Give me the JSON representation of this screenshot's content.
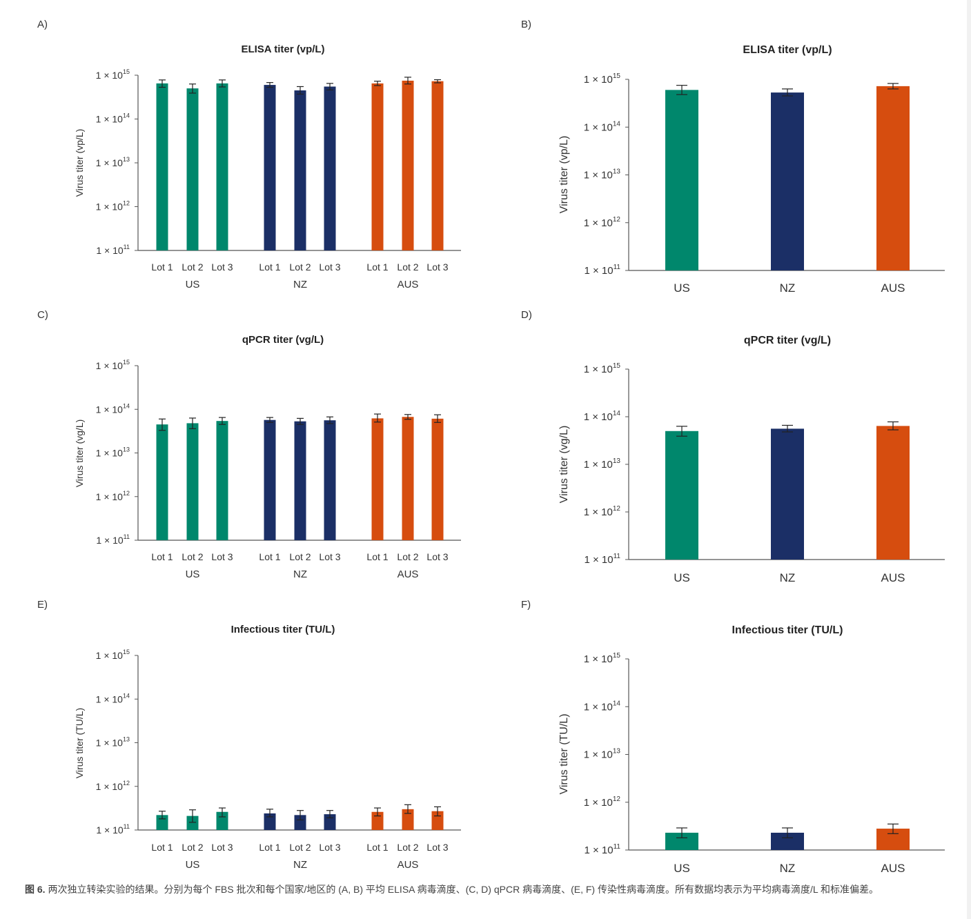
{
  "colors": {
    "US": "#00876c",
    "NZ": "#1b2f66",
    "AUS": "#d64d0f",
    "axis": "#555555",
    "text": "#333333"
  },
  "y_ticks": [
    "1 × 10",
    "1 × 10",
    "1 × 10",
    "1 × 10",
    "1 × 10"
  ],
  "y_tick_exponents": [
    "11",
    "12",
    "13",
    "14",
    "15"
  ],
  "lot_labels": [
    "Lot 1",
    "Lot 2",
    "Lot 3"
  ],
  "countries": [
    "US",
    "NZ",
    "AUS"
  ],
  "chart_data": [
    {
      "panel_label": "A)",
      "type": "bar",
      "grouped": true,
      "title": "ELISA titer (vp/L)",
      "ylabel": "Virus titer (vp/L)",
      "yscale": "log10",
      "ylim": [
        100000000000.0,
        1000000000000000.0
      ],
      "values": [
        [
          650000000000000.0,
          500000000000000.0,
          650000000000000.0
        ],
        [
          600000000000000.0,
          450000000000000.0,
          550000000000000.0
        ],
        [
          650000000000000.0,
          750000000000000.0,
          730000000000000.0
        ]
      ],
      "err_low": [
        [
          530000000000000.0,
          390000000000000.0,
          540000000000000.0
        ],
        [
          530000000000000.0,
          370000000000000.0,
          460000000000000.0
        ],
        [
          580000000000000.0,
          630000000000000.0,
          670000000000000.0
        ]
      ],
      "err_high": [
        [
          780000000000000.0,
          630000000000000.0,
          780000000000000.0
        ],
        [
          680000000000000.0,
          550000000000000.0,
          650000000000000.0
        ],
        [
          730000000000000.0,
          900000000000000.0,
          790000000000000.0
        ]
      ]
    },
    {
      "panel_label": "B)",
      "type": "bar",
      "grouped": false,
      "title": "ELISA titer (vp/L)",
      "ylabel": "Virus titer (vp/L)",
      "yscale": "log10",
      "ylim": [
        100000000000.0,
        1000000000000000.0
      ],
      "values": [
        600000000000000.0,
        530000000000000.0,
        720000000000000.0
      ],
      "err_low": [
        480000000000000.0,
        450000000000000.0,
        630000000000000.0
      ],
      "err_high": [
        750000000000000.0,
        630000000000000.0,
        820000000000000.0
      ]
    },
    {
      "panel_label": "C)",
      "type": "bar",
      "grouped": true,
      "title": "qPCR titer (vg/L)",
      "ylabel": "Virus titer (vg/L)",
      "yscale": "log10",
      "ylim": [
        100000000000.0,
        1000000000000000.0
      ],
      "values": [
        [
          45000000000000.0,
          48000000000000.0,
          54000000000000.0
        ],
        [
          57000000000000.0,
          53000000000000.0,
          56000000000000.0
        ],
        [
          62000000000000.0,
          67000000000000.0,
          61000000000000.0
        ]
      ],
      "err_low": [
        [
          33000000000000.0,
          36000000000000.0,
          45000000000000.0
        ],
        [
          50000000000000.0,
          45000000000000.0,
          47000000000000.0
        ],
        [
          51000000000000.0,
          59000000000000.0,
          50000000000000.0
        ]
      ],
      "err_high": [
        [
          60000000000000.0,
          63000000000000.0,
          65000000000000.0
        ],
        [
          65000000000000.0,
          62000000000000.0,
          67000000000000.0
        ],
        [
          78000000000000.0,
          76000000000000.0,
          75000000000000.0
        ]
      ]
    },
    {
      "panel_label": "D)",
      "type": "bar",
      "grouped": false,
      "title": "qPCR titer (vg/L)",
      "ylabel": "Virus titer (vg/L)",
      "yscale": "log10",
      "ylim": [
        100000000000.0,
        1000000000000000.0
      ],
      "values": [
        50000000000000.0,
        56000000000000.0,
        64000000000000.0
      ],
      "err_low": [
        39000000000000.0,
        48000000000000.0,
        53000000000000.0
      ],
      "err_high": [
        63000000000000.0,
        66000000000000.0,
        78000000000000.0
      ]
    },
    {
      "panel_label": "E)",
      "type": "bar",
      "grouped": true,
      "title": "Infectious titer (TU/L)",
      "ylabel": "Virus titer (TU/L)",
      "yscale": "log10",
      "ylim": [
        100000000000.0,
        1000000000000000.0
      ],
      "values": [
        [
          220000000000.0,
          210000000000.0,
          260000000000.0
        ],
        [
          240000000000.0,
          220000000000.0,
          230000000000.0
        ],
        [
          260000000000.0,
          300000000000.0,
          270000000000.0
        ]
      ],
      "err_low": [
        [
          180000000000.0,
          150000000000.0,
          200000000000.0
        ],
        [
          200000000000.0,
          170000000000.0,
          190000000000.0
        ],
        [
          210000000000.0,
          240000000000.0,
          210000000000.0
        ]
      ],
      "err_high": [
        [
          270000000000.0,
          290000000000.0,
          320000000000.0
        ],
        [
          300000000000.0,
          280000000000.0,
          280000000000.0
        ],
        [
          320000000000.0,
          380000000000.0,
          340000000000.0
        ]
      ]
    },
    {
      "panel_label": "F)",
      "type": "bar",
      "grouped": false,
      "title": "Infectious titer (TU/L)",
      "ylabel": "Virus titer (TU/L)",
      "yscale": "log10",
      "ylim": [
        100000000000.0,
        1000000000000000.0
      ],
      "values": [
        230000000000.0,
        230000000000.0,
        280000000000.0
      ],
      "err_low": [
        180000000000.0,
        180000000000.0,
        220000000000.0
      ],
      "err_high": [
        290000000000.0,
        290000000000.0,
        350000000000.0
      ]
    }
  ],
  "caption": {
    "lead": "图 6.",
    "text": " 两次独立转染实验的结果。分别为每个 FBS 批次和每个国家/地区的 (A, B) 平均 ELISA 病毒滴度、(C, D) qPCR 病毒滴度、(E, F) 传染性病毒滴度。所有数据均表示为平均病毒滴度/L 和标准偏差。"
  }
}
